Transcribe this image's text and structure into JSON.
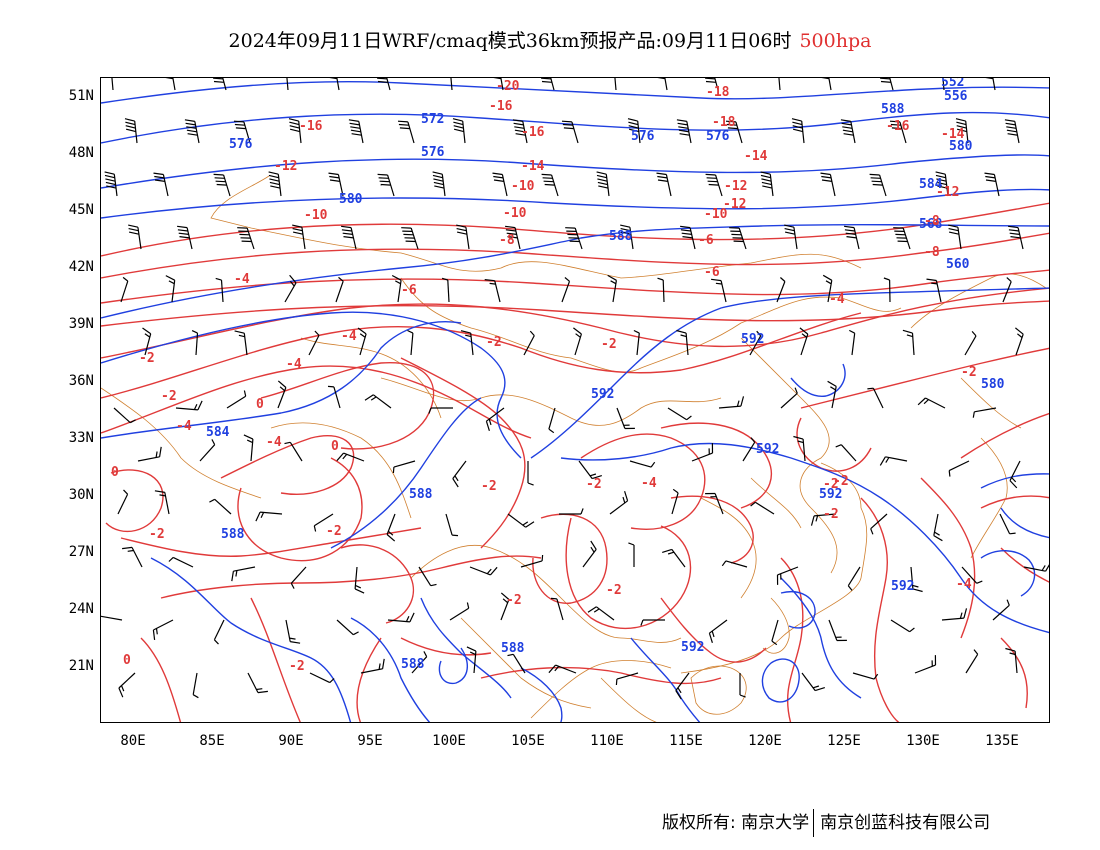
{
  "header": {
    "title": "2024年09月11日WRF/cmaq模式36km预报产品:09月11日06时",
    "level": "500hpa"
  },
  "map": {
    "lat_labels": [
      "51N",
      "48N",
      "45N",
      "42N",
      "39N",
      "36N",
      "33N",
      "30N",
      "27N",
      "24N",
      "21N"
    ],
    "lon_labels": [
      "80E",
      "85E",
      "90E",
      "95E",
      "100E",
      "105E",
      "110E",
      "115E",
      "120E",
      "125E",
      "130E",
      "135E"
    ],
    "colors": {
      "height_contour": "#2040e0",
      "temperature_contour": "#e03a3a",
      "boundary": "#d08030",
      "wind_barb": "#000000"
    },
    "height_labels": [
      "552",
      "556",
      "560",
      "568",
      "572",
      "576",
      "580",
      "584",
      "588",
      "592"
    ],
    "temperature_labels": [
      "-20",
      "-18",
      "-16",
      "-14",
      "-12",
      "-10",
      "-8",
      "-6",
      "-4",
      "-2",
      "0"
    ]
  },
  "footer": {
    "copyright": "版权所有: 南京大学",
    "company": "南京创蓝科技有限公司"
  }
}
